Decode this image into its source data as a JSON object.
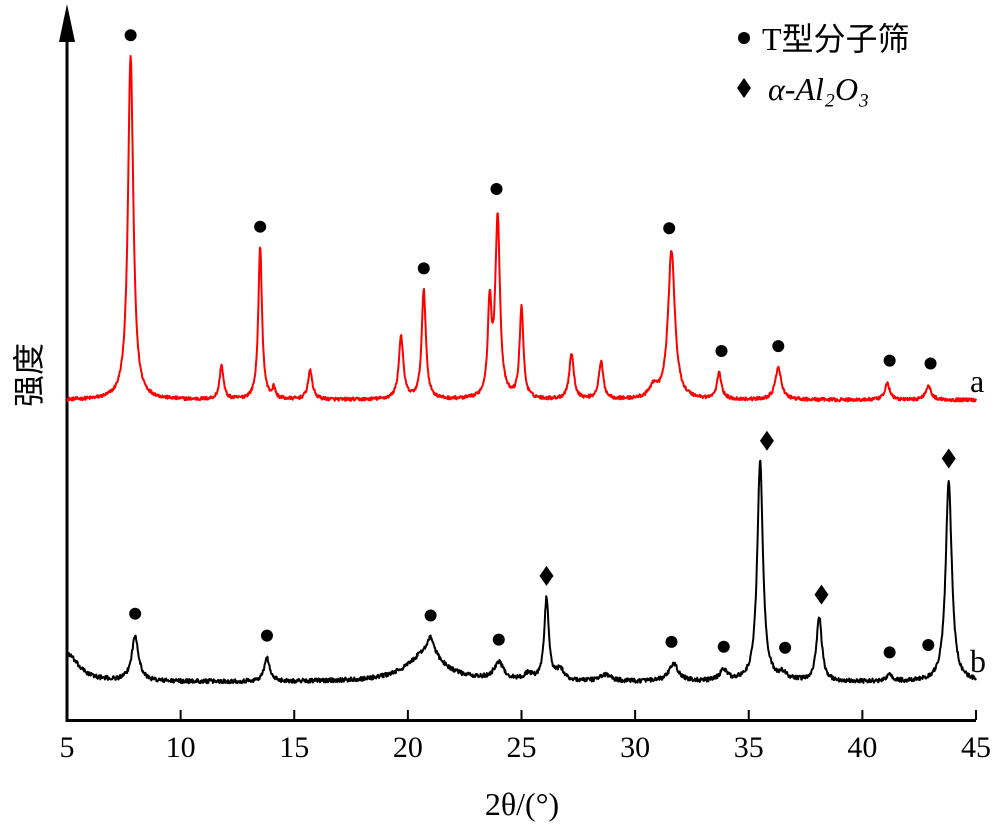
{
  "chart_data": {
    "type": "line",
    "xlabel": "2θ/(°)",
    "ylabel": "强度",
    "xlim": [
      5,
      45
    ],
    "xticks": [
      "5",
      "10",
      "15",
      "20",
      "25",
      "30",
      "35",
      "40",
      "45"
    ],
    "yticks": [],
    "grid": false,
    "legend_position": "top-right",
    "legend": [
      {
        "marker": "circle",
        "label": "T型分子筛"
      },
      {
        "marker": "diamond",
        "label": "α-Al₂O₃"
      }
    ],
    "series": [
      {
        "name": "a",
        "color": "#ff0000",
        "baseline": 1.0,
        "noise": 0.06,
        "peaks": [
          {
            "x": 7.8,
            "h": 12.0,
            "w": 0.14
          },
          {
            "x": 11.8,
            "h": 1.2,
            "w": 0.1
          },
          {
            "x": 13.5,
            "h": 5.3,
            "w": 0.1
          },
          {
            "x": 14.1,
            "h": 0.35,
            "w": 0.08
          },
          {
            "x": 15.7,
            "h": 1.0,
            "w": 0.12
          },
          {
            "x": 19.7,
            "h": 2.2,
            "w": 0.12
          },
          {
            "x": 20.7,
            "h": 3.8,
            "w": 0.11
          },
          {
            "x": 23.6,
            "h": 3.2,
            "w": 0.1
          },
          {
            "x": 23.95,
            "h": 6.3,
            "w": 0.12
          },
          {
            "x": 25.0,
            "h": 3.2,
            "w": 0.1
          },
          {
            "x": 27.2,
            "h": 1.6,
            "w": 0.12
          },
          {
            "x": 28.5,
            "h": 1.3,
            "w": 0.12
          },
          {
            "x": 30.8,
            "h": 0.4,
            "w": 0.2
          },
          {
            "x": 31.6,
            "h": 5.2,
            "w": 0.18
          },
          {
            "x": 33.7,
            "h": 0.9,
            "w": 0.12
          },
          {
            "x": 36.3,
            "h": 1.1,
            "w": 0.16
          },
          {
            "x": 41.1,
            "h": 0.6,
            "w": 0.12
          },
          {
            "x": 42.9,
            "h": 0.5,
            "w": 0.14
          }
        ]
      },
      {
        "name": "b",
        "color": "#000000",
        "baseline": 1.0,
        "noise": 0.1,
        "peaks": [
          {
            "x": 5.0,
            "h": 1.3,
            "w": 0.6
          },
          {
            "x": 8.0,
            "h": 2.1,
            "w": 0.18
          },
          {
            "x": 13.8,
            "h": 1.1,
            "w": 0.14
          },
          {
            "x": 20.8,
            "h": 1.3,
            "w": 1.0
          },
          {
            "x": 21.0,
            "h": 0.8,
            "w": 0.2
          },
          {
            "x": 24.0,
            "h": 0.8,
            "w": 0.25
          },
          {
            "x": 25.3,
            "h": 0.3,
            "w": 0.2
          },
          {
            "x": 26.1,
            "h": 3.8,
            "w": 0.12
          },
          {
            "x": 26.7,
            "h": 0.5,
            "w": 0.2
          },
          {
            "x": 28.7,
            "h": 0.3,
            "w": 0.3
          },
          {
            "x": 31.7,
            "h": 0.8,
            "w": 0.25
          },
          {
            "x": 33.9,
            "h": 0.5,
            "w": 0.2
          },
          {
            "x": 35.5,
            "h": 10.2,
            "w": 0.15
          },
          {
            "x": 36.5,
            "h": 0.3,
            "w": 0.2
          },
          {
            "x": 38.1,
            "h": 3.0,
            "w": 0.14
          },
          {
            "x": 41.2,
            "h": 0.3,
            "w": 0.15
          },
          {
            "x": 43.8,
            "h": 9.4,
            "w": 0.16
          }
        ]
      }
    ],
    "markers": [
      {
        "series": "a",
        "symbol": "circle",
        "x": 7.8
      },
      {
        "series": "a",
        "symbol": "circle",
        "x": 13.5
      },
      {
        "series": "a",
        "symbol": "circle",
        "x": 20.7
      },
      {
        "series": "a",
        "symbol": "circle",
        "x": 23.9
      },
      {
        "series": "a",
        "symbol": "circle",
        "x": 31.5
      },
      {
        "series": "a",
        "symbol": "circle",
        "x": 33.8
      },
      {
        "series": "a",
        "symbol": "circle",
        "x": 36.3
      },
      {
        "series": "a",
        "symbol": "circle",
        "x": 41.2
      },
      {
        "series": "a",
        "symbol": "circle",
        "x": 43.0
      },
      {
        "series": "b",
        "symbol": "circle",
        "x": 8.0
      },
      {
        "series": "b",
        "symbol": "circle",
        "x": 13.8
      },
      {
        "series": "b",
        "symbol": "circle",
        "x": 21.0
      },
      {
        "series": "b",
        "symbol": "circle",
        "x": 24.0
      },
      {
        "series": "b",
        "symbol": "circle",
        "x": 31.6
      },
      {
        "series": "b",
        "symbol": "circle",
        "x": 33.9
      },
      {
        "series": "b",
        "symbol": "circle",
        "x": 36.6
      },
      {
        "series": "b",
        "symbol": "circle",
        "x": 41.2
      },
      {
        "series": "b",
        "symbol": "circle",
        "x": 42.9
      },
      {
        "series": "b",
        "symbol": "diamond",
        "x": 26.1
      },
      {
        "series": "b",
        "symbol": "diamond",
        "x": 35.8
      },
      {
        "series": "b",
        "symbol": "diamond",
        "x": 38.2
      },
      {
        "series": "b",
        "symbol": "diamond",
        "x": 43.8
      }
    ]
  }
}
